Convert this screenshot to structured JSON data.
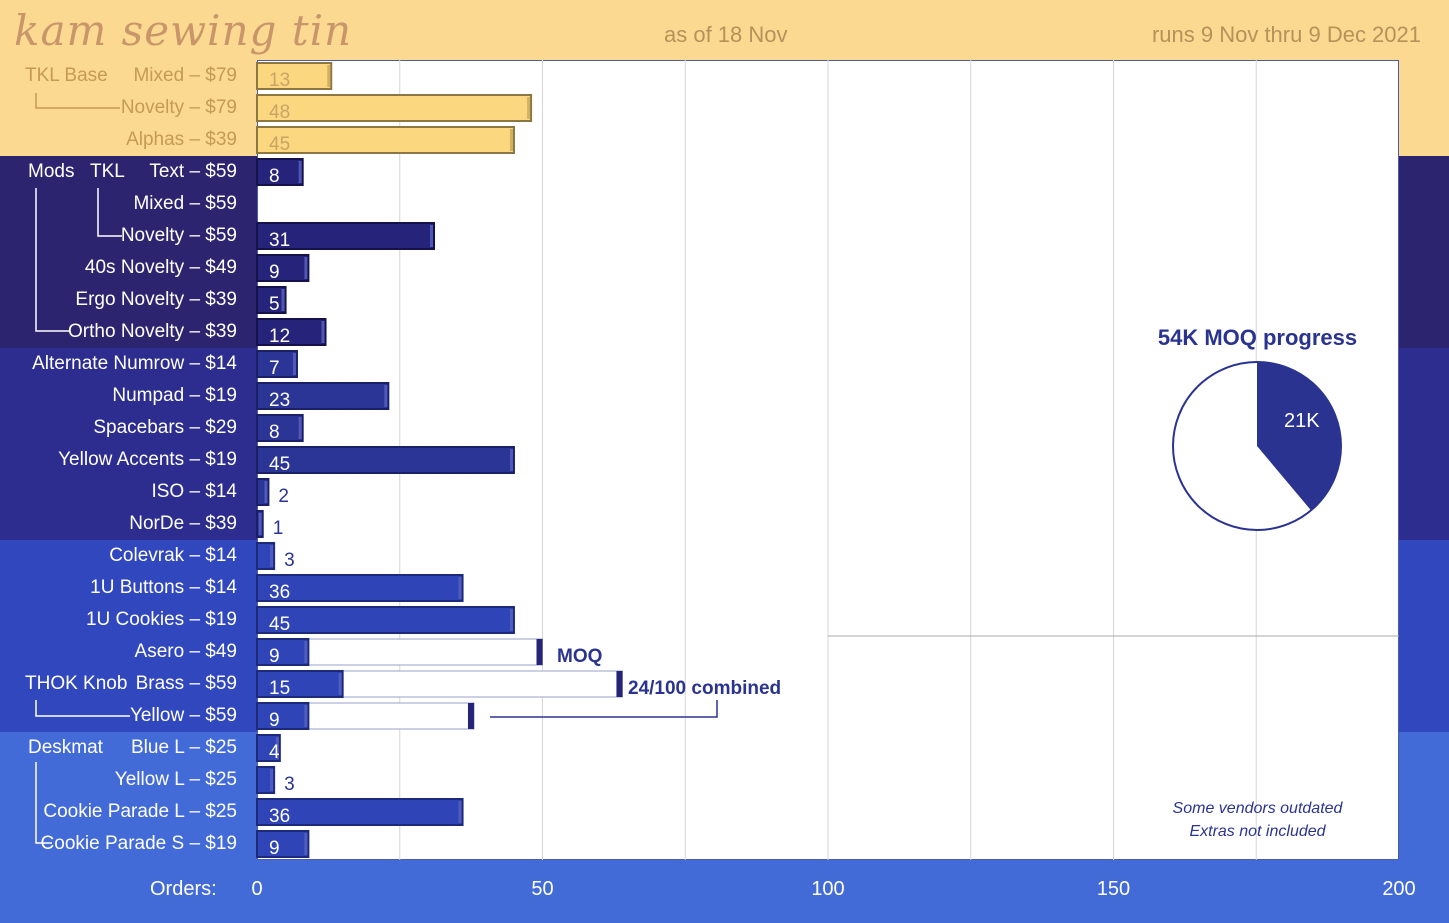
{
  "header": {
    "title": "kam sewing tin",
    "as_of": "as of 18 Nov",
    "runs": "runs 9 Nov thru 9 Dec 2021"
  },
  "colors": {
    "base_band": "#fcd990",
    "mods_tkl_band": "#2d2470",
    "mods_band": "#2c2d8f",
    "mods2_band": "#3047be",
    "desk_band": "#426bd7",
    "gold_bar": "#fbd780",
    "gold_border": "#8c7740",
    "dark_bar": "#26237a",
    "mid_bar": "#2b3596",
    "blue_bar": "#2f44b6",
    "value_text": "#2a3490"
  },
  "groups": [
    {
      "label": "TKL Base",
      "color": "#b89250"
    },
    {
      "label": "Mods",
      "color": "#ffffff"
    },
    {
      "label": "TKL",
      "color": "#ffffff"
    },
    {
      "label": "THOK Knob",
      "color": "#ffffff"
    },
    {
      "label": "Deskmat",
      "color": "#ffffff"
    }
  ],
  "annotations": {
    "moq": "MOQ",
    "combined": "24/100 combined",
    "note1": "Some vendors outdated",
    "note2": "Extras not included"
  },
  "pie": {
    "title": "54K MOQ progress",
    "label": "21K",
    "value": 21,
    "total": 54
  },
  "chart_data": {
    "type": "bar",
    "orientation": "horizontal",
    "xlabel": "Orders:",
    "xlim": [
      0,
      200
    ],
    "xticks": [
      0,
      50,
      100,
      150,
      200
    ],
    "categories": [
      "Mixed – $79",
      "Novelty – $79",
      "Alphas – $39",
      "Text – $59",
      "Mixed – $59",
      "Novelty – $59",
      "40s Novelty – $49",
      "Ergo Novelty – $39",
      "Ortho Novelty – $39",
      "Alternate Numrow – $14",
      "Numpad – $19",
      "Spacebars – $29",
      "Yellow Accents – $19",
      "ISO – $14",
      "NorDe – $39",
      "Colevrak – $14",
      "1U Buttons – $14",
      "1U Cookies – $19",
      "Asero – $49",
      "Brass – $59",
      "Yellow – $59",
      "Blue L – $25",
      "Yellow L – $25",
      "Cookie Parade L – $25",
      "Cookie Parade S – $19"
    ],
    "values": [
      13,
      48,
      45,
      8,
      null,
      31,
      9,
      5,
      12,
      7,
      23,
      8,
      45,
      2,
      1,
      3,
      36,
      45,
      9,
      15,
      9,
      4,
      3,
      36,
      9
    ],
    "value_labels": [
      "13",
      "48",
      "45",
      "8",
      "",
      "31",
      "9",
      "5",
      "12",
      "7",
      "23",
      "8",
      "45",
      "2",
      "1",
      "3",
      "36",
      "45",
      "9",
      "15",
      "9",
      "4",
      "3",
      "36",
      "9"
    ],
    "moq_targets": [
      {
        "category": "Asero – $49",
        "moq": 50
      },
      {
        "category": "Brass – $59",
        "moq": 64
      },
      {
        "category": "Yellow – $59",
        "moq": 38
      }
    ]
  }
}
